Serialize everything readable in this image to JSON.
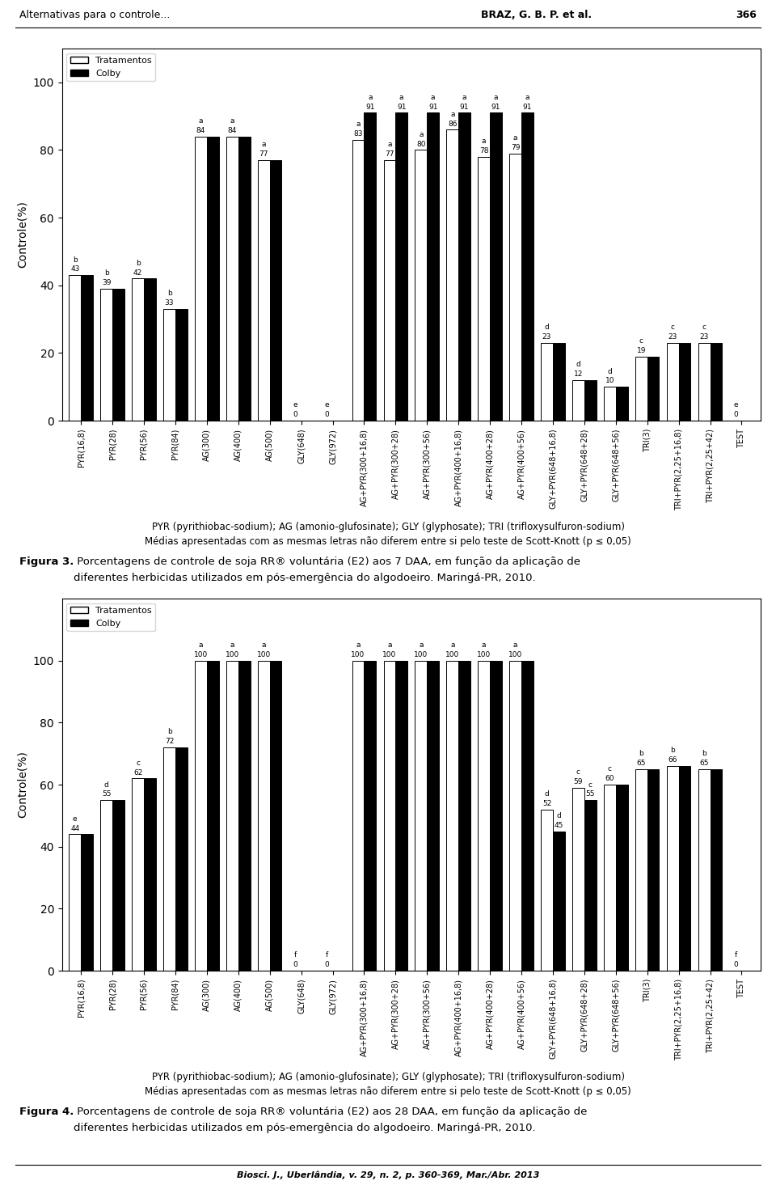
{
  "chart_data": [
    {
      "type": "bar",
      "ylabel": "Controle(%)",
      "ylim": [
        0,
        110
      ],
      "yticks": [
        0,
        20,
        40,
        60,
        80,
        100
      ],
      "categories": [
        "PYR(16,8)",
        "PYR(28)",
        "PYR(56)",
        "PYR(84)",
        "AG(300)",
        "AG(400)",
        "AG(500)",
        "GLY(648)",
        "GLY(972)",
        "AG+PYR(300+16,8)",
        "AG+PYR(300+28)",
        "AG+PYR(300+56)",
        "AG+PYR(400+16,8)",
        "AG+PYR(400+28)",
        "AG+PYR(400+56)",
        "GLY+PYR(648+16,8)",
        "GLY+PYR(648+28)",
        "GLY+PYR(648+56)",
        "TRI(3)",
        "TRI+PYR(2,25+16,8)",
        "TRI+PYR(2,25+42)",
        "TEST"
      ],
      "series": [
        {
          "name": "Tratamentos",
          "color": "white",
          "values": [
            43,
            39,
            42,
            33,
            84,
            84,
            77,
            0,
            0,
            83,
            77,
            80,
            86,
            78,
            79,
            23,
            12,
            10,
            19,
            23,
            23,
            0
          ],
          "letters": [
            "b",
            "b",
            "b",
            "b",
            "a",
            "a",
            "a",
            "e",
            "e",
            "a",
            "a",
            "a",
            "a",
            "a",
            "a",
            "d",
            "d",
            "d",
            "c",
            "c",
            "c",
            "e"
          ]
        },
        {
          "name": "Colby",
          "color": "black",
          "values": [
            43,
            39,
            42,
            33,
            84,
            84,
            77,
            0,
            0,
            91,
            91,
            91,
            91,
            91,
            91,
            23,
            12,
            10,
            19,
            23,
            23,
            0
          ],
          "value_labels": [
            null,
            null,
            null,
            null,
            null,
            null,
            null,
            null,
            null,
            "91",
            "91",
            "91",
            "91",
            "91",
            "91",
            null,
            null,
            null,
            null,
            null,
            null,
            null
          ],
          "letters": [
            null,
            null,
            null,
            null,
            null,
            null,
            null,
            null,
            null,
            "a",
            "a",
            "a",
            "a",
            "a",
            "a",
            null,
            null,
            null,
            null,
            null,
            null,
            null
          ]
        }
      ],
      "data_labels": true,
      "legend": "upper left",
      "caption": [
        "PYR (pyrithiobac-sodium); AG (amonio-glufosinate); GLY (glyphosate); TRI (trifloxysulfuron-sodium)",
        "Médias apresentadas com as mesmas letras não diferem entre si pelo teste de Scott-Knott (p ≤ 0,05)"
      ],
      "figure_label": "Figura 3.",
      "figure_caption": [
        " Porcentagens de controle de soja RR® voluntária (E2) aos 7 DAA, em função da aplicação de",
        "diferentes herbicidas utilizados em pós-emergência do algodoeiro. Maringá-PR, 2010."
      ]
    },
    {
      "type": "bar",
      "ylabel": "Controle(%)",
      "ylim": [
        0,
        120
      ],
      "yticks": [
        0,
        20,
        40,
        60,
        80,
        100
      ],
      "categories": [
        "PYR(16,8)",
        "PYR(28)",
        "PYR(56)",
        "PYR(84)",
        "AG(300)",
        "AG(400)",
        "AG(500)",
        "GLY(648)",
        "GLY(972)",
        "AG+PYR(300+16,8)",
        "AG+PYR(300+28)",
        "AG+PYR(300+56)",
        "AG+PYR(400+16,8)",
        "AG+PYR(400+28)",
        "AG+PYR(400+56)",
        "GLY+PYR(648+16,8)",
        "GLY+PYR(648+28)",
        "GLY+PYR(648+56)",
        "TRI(3)",
        "TRI+PYR(2,25+16,8)",
        "TRI+PYR(2,25+42)",
        "TEST"
      ],
      "series": [
        {
          "name": "Tratamentos",
          "color": "white",
          "values": [
            44,
            55,
            62,
            72,
            100,
            100,
            100,
            0,
            0,
            100,
            100,
            100,
            100,
            100,
            100,
            52,
            59,
            60,
            65,
            66,
            65,
            0
          ],
          "letters": [
            "e",
            "d",
            "c",
            "b",
            "a",
            "a",
            "a",
            "f",
            "f",
            "a",
            "a",
            "a",
            "a",
            "a",
            "a",
            "d",
            "c",
            "c",
            "b",
            "b",
            "b",
            "f"
          ]
        },
        {
          "name": "Colby",
          "color": "black",
          "values": [
            44,
            55,
            62,
            72,
            100,
            100,
            100,
            0,
            0,
            100,
            100,
            100,
            100,
            100,
            100,
            45,
            55,
            60,
            65,
            66,
            65,
            0
          ],
          "value_labels": [
            null,
            null,
            null,
            null,
            null,
            null,
            null,
            null,
            null,
            null,
            null,
            null,
            null,
            null,
            null,
            "45",
            "55",
            null,
            null,
            null,
            null,
            null
          ],
          "letters": [
            null,
            null,
            null,
            null,
            null,
            null,
            null,
            null,
            null,
            null,
            null,
            null,
            null,
            null,
            null,
            "d",
            "c",
            null,
            null,
            null,
            null,
            null
          ]
        }
      ],
      "data_labels": true,
      "legend": "upper left",
      "caption": [
        "PYR (pyrithiobac-sodium); AG (amonio-glufosinate); GLY (glyphosate); TRI (trifloxysulfuron-sodium)",
        "Médias apresentadas com as mesmas letras não diferem entre si pelo teste de Scott-Knott (p ≤ 0,05)"
      ],
      "figure_label": "Figura 4.",
      "figure_caption": [
        " Porcentagens de controle de soja RR® voluntária (E2) aos 28 DAA, em função da aplicação de",
        "diferentes herbicidas utilizados em pós-emergência do algodoeiro. Maringá-PR, 2010."
      ]
    }
  ],
  "header": [
    "Alternativas para o controle...",
    "BRAZ, G. B. P. et al.",
    "366"
  ],
  "footer": "Biosci. J., Uberlândia, v. 29, n. 2, p. 360-369, Mar./Abr. 2013"
}
